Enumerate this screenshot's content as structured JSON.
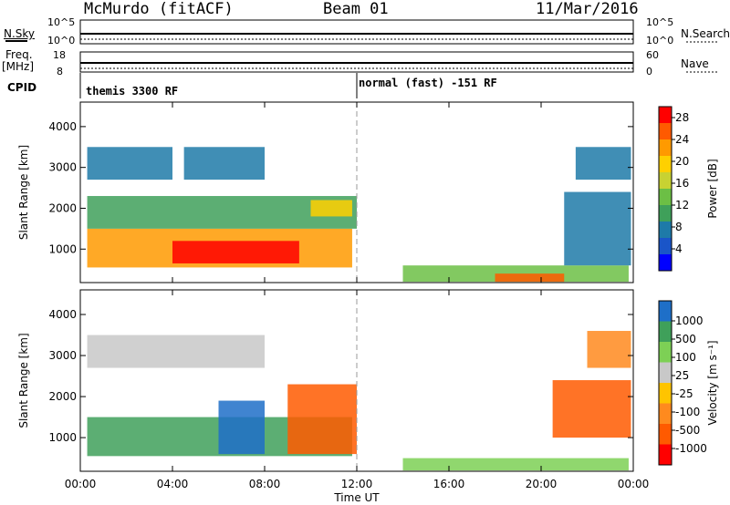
{
  "header": {
    "station": "McMurdo (fitACF)",
    "beam": "Beam 01",
    "date": "11/Mar/2016"
  },
  "status_panels": {
    "nsky_label": "N.Sky",
    "nsky_ticks": [
      "10^5",
      "10^0"
    ],
    "nsearch_label": "N.Search",
    "nsearch_ticks": [
      "10^5",
      "10^0"
    ],
    "freq_label": "Freq.",
    "freq_unit": "[MHz]",
    "freq_ticks": [
      "18",
      "8"
    ],
    "nave_label": "Nave",
    "nave_ticks": [
      "60",
      "0"
    ],
    "cpid_label": "CPID",
    "modes": [
      {
        "text": "themis 3300 RF",
        "start_hour": 0
      },
      {
        "text": "normal (fast) -151 RF",
        "start_hour": 12
      }
    ]
  },
  "x_axis": {
    "label": "Time UT",
    "ticks": [
      "00:00",
      "04:00",
      "08:00",
      "12:00",
      "16:00",
      "20:00",
      "00:00"
    ]
  },
  "chart_data": [
    {
      "type": "heatmap",
      "name": "power",
      "ylabel": "Slant Range [km]",
      "xlim": [
        0,
        24
      ],
      "ylim": [
        180,
        4600
      ],
      "yticks": [
        "1000",
        "2000",
        "3000",
        "4000"
      ],
      "colorbar": {
        "label": "Power [dB]",
        "ticks": [
          "28",
          "24",
          "20",
          "16",
          "12",
          "8",
          "4"
        ],
        "range": [
          0,
          30
        ],
        "colors": [
          "#0000ff",
          "#1a55c8",
          "#1e7aa8",
          "#3fa05a",
          "#6cbf45",
          "#c8d232",
          "#ffd000",
          "#ff9a00",
          "#ff5a00",
          "#ff0000"
        ]
      },
      "regions": [
        {
          "t0": 0.3,
          "t1": 11.8,
          "r0": 550,
          "r1": 1500,
          "value": 22
        },
        {
          "t0": 4.0,
          "t1": 9.5,
          "r0": 650,
          "r1": 1200,
          "value": 28
        },
        {
          "t0": 0.3,
          "t1": 12.0,
          "r0": 1500,
          "r1": 2300,
          "value": 9
        },
        {
          "t0": 10.0,
          "t1": 11.8,
          "r0": 1800,
          "r1": 2200,
          "value": 18
        },
        {
          "t0": 0.3,
          "t1": 4.0,
          "r0": 2700,
          "r1": 3500,
          "value": 6
        },
        {
          "t0": 4.5,
          "t1": 8.0,
          "r0": 2700,
          "r1": 3500,
          "value": 8
        },
        {
          "t0": 14.0,
          "t1": 23.8,
          "r0": 200,
          "r1": 600,
          "value": 14
        },
        {
          "t0": 18.0,
          "t1": 21.0,
          "r0": 200,
          "r1": 400,
          "value": 26
        },
        {
          "t0": 21.0,
          "t1": 23.9,
          "r0": 600,
          "r1": 2400,
          "value": 8
        },
        {
          "t0": 21.5,
          "t1": 23.9,
          "r0": 2700,
          "r1": 3500,
          "value": 6
        }
      ]
    },
    {
      "type": "heatmap",
      "name": "velocity",
      "ylabel": "Slant Range [km]",
      "xlim": [
        0,
        24
      ],
      "ylim": [
        180,
        4600
      ],
      "yticks": [
        "1000",
        "2000",
        "3000",
        "4000"
      ],
      "colorbar": {
        "label": "Velocity [m s⁻¹]",
        "ticks": [
          "1000",
          "500",
          "100",
          "25",
          "-25",
          "-100",
          "-500",
          "-1000"
        ],
        "colors": [
          "#ff0000",
          "#ff5a00",
          "#ff8a1e",
          "#ffc400",
          "#c8c8c8",
          "#7dd055",
          "#3fa05a",
          "#1e6fc8"
        ]
      },
      "regions": [
        {
          "t0": 0.3,
          "t1": 11.8,
          "r0": 550,
          "r1": 1500,
          "vel_bin": 6
        },
        {
          "t0": 6.0,
          "t1": 8.0,
          "r0": 600,
          "r1": 1900,
          "vel_bin": 7
        },
        {
          "t0": 9.0,
          "t1": 12.0,
          "r0": 600,
          "r1": 2300,
          "vel_bin": 1
        },
        {
          "t0": 0.3,
          "t1": 8.0,
          "r0": 2700,
          "r1": 3500,
          "vel_bin": 4
        },
        {
          "t0": 14.0,
          "t1": 23.8,
          "r0": 200,
          "r1": 500,
          "vel_bin": 5
        },
        {
          "t0": 20.5,
          "t1": 23.9,
          "r0": 1000,
          "r1": 2400,
          "vel_bin": 1
        },
        {
          "t0": 22.0,
          "t1": 23.9,
          "r0": 2700,
          "r1": 3600,
          "vel_bin": 2
        }
      ]
    }
  ]
}
